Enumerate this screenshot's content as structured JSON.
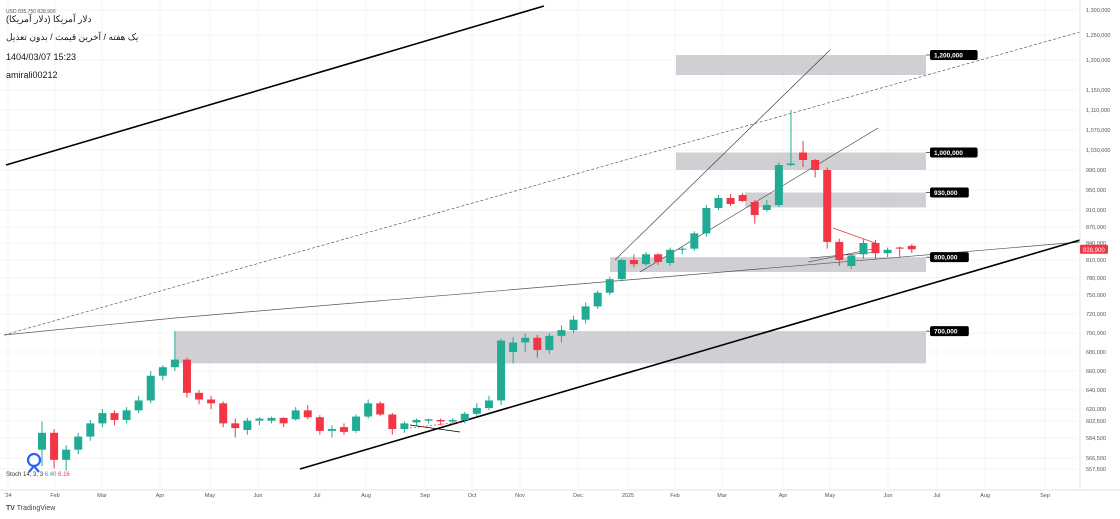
{
  "header": {
    "ohlc_line": "USD 835,750 828,900",
    "symbol_title": "دلار آمریکا (دلار آمریکا)",
    "interval_desc": "یک هفته / آخرین قیمت / بدون تعدیل",
    "timestamp": "1404/03/07 15:23",
    "author": "amirali00212"
  },
  "indicator_legend": {
    "label": "Stoch",
    "params": "14, 3, 3",
    "value1": "6.40",
    "value2": "6.16"
  },
  "watermark": "TradingView",
  "colors": {
    "up": "#22ab94",
    "down": "#f23645",
    "zone": "#c8c8cc",
    "grid": "#eeeeee",
    "price_tag": "#f23645"
  },
  "chart_data": {
    "type": "candlestick",
    "y_axis": {
      "ticks": [
        557500,
        566500,
        584500,
        602500,
        620000,
        640000,
        660000,
        680000,
        700000,
        720000,
        750000,
        780000,
        810000,
        840000,
        870000,
        910000,
        950000,
        990000,
        1030000,
        1070000,
        1110000,
        1150000,
        1200000,
        1250000,
        1300000
      ],
      "tick_labels": [
        "557,500",
        "566,500",
        "584,500",
        "602,500",
        "620,000",
        "640,000",
        "660,000",
        "680,000",
        "700,000",
        "720,000",
        "750,000",
        "780,000",
        "810,000",
        "840,000",
        "870,000",
        "910,000",
        "950,000",
        "990,000",
        "1,030,000",
        "1,070,000",
        "1,110,000",
        "1,150,000",
        "1,200,000",
        "1,250,000",
        "1,300,000"
      ]
    },
    "x_axis": {
      "labels": [
        "'24",
        "Feb",
        "Mar",
        "Apr",
        "May",
        "Jun",
        "Jul",
        "Aug",
        "Sep",
        "Oct",
        "Nov",
        "Dec",
        "2025",
        "Feb",
        "Mar",
        "Apr",
        "May",
        "Jun",
        "Jul",
        "Aug",
        "Sep"
      ]
    },
    "last_price": 828900,
    "last_price_label": "828,900",
    "candles": [
      {
        "o": 574000,
        "h": 602000,
        "l": 560000,
        "c": 590000
      },
      {
        "o": 590000,
        "h": 594000,
        "l": 558000,
        "c": 565000
      },
      {
        "o": 565000,
        "h": 578000,
        "l": 556000,
        "c": 574000
      },
      {
        "o": 574000,
        "h": 590000,
        "l": 570000,
        "c": 586000
      },
      {
        "o": 586000,
        "h": 604000,
        "l": 582000,
        "c": 600000
      },
      {
        "o": 600000,
        "h": 620000,
        "l": 596000,
        "c": 614000
      },
      {
        "o": 614000,
        "h": 618000,
        "l": 598000,
        "c": 604000
      },
      {
        "o": 604000,
        "h": 622000,
        "l": 600000,
        "c": 618000
      },
      {
        "o": 618000,
        "h": 634000,
        "l": 614000,
        "c": 629000
      },
      {
        "o": 629000,
        "h": 660000,
        "l": 626000,
        "c": 655000
      },
      {
        "o": 655000,
        "h": 666000,
        "l": 650000,
        "c": 664000
      },
      {
        "o": 664000,
        "h": 702000,
        "l": 660000,
        "c": 672000
      },
      {
        "o": 672000,
        "h": 674000,
        "l": 632000,
        "c": 637000
      },
      {
        "o": 637000,
        "h": 640000,
        "l": 625000,
        "c": 630000
      },
      {
        "o": 630000,
        "h": 634000,
        "l": 620000,
        "c": 626000
      },
      {
        "o": 626000,
        "h": 628000,
        "l": 596000,
        "c": 600000
      },
      {
        "o": 600000,
        "h": 606000,
        "l": 585000,
        "c": 595000
      },
      {
        "o": 593000,
        "h": 607000,
        "l": 588000,
        "c": 603000
      },
      {
        "o": 603000,
        "h": 608000,
        "l": 598000,
        "c": 606000
      },
      {
        "o": 603000,
        "h": 609000,
        "l": 600000,
        "c": 607000
      },
      {
        "o": 607000,
        "h": 608000,
        "l": 596000,
        "c": 600000
      },
      {
        "o": 605000,
        "h": 622000,
        "l": 603000,
        "c": 618000
      },
      {
        "o": 618000,
        "h": 624000,
        "l": 605000,
        "c": 608000
      },
      {
        "o": 608000,
        "h": 611000,
        "l": 588000,
        "c": 592000
      },
      {
        "o": 592000,
        "h": 598000,
        "l": 585000,
        "c": 594000
      },
      {
        "o": 596000,
        "h": 600000,
        "l": 588000,
        "c": 591000
      },
      {
        "o": 592000,
        "h": 612000,
        "l": 590000,
        "c": 609000
      },
      {
        "o": 609000,
        "h": 630000,
        "l": 606000,
        "c": 626000
      },
      {
        "o": 626000,
        "h": 628000,
        "l": 610000,
        "c": 612000
      },
      {
        "o": 612000,
        "h": 614000,
        "l": 588000,
        "c": 594000
      },
      {
        "o": 594000,
        "h": 602000,
        "l": 590000,
        "c": 600000
      },
      {
        "o": 601000,
        "h": 606000,
        "l": 598000,
        "c": 604000
      },
      {
        "o": 603000,
        "h": 606000,
        "l": 600000,
        "c": 605000
      },
      {
        "o": 604000,
        "h": 606000,
        "l": 598000,
        "c": 602000
      },
      {
        "o": 602000,
        "h": 607000,
        "l": 599000,
        "c": 604000
      },
      {
        "o": 604000,
        "h": 616000,
        "l": 600000,
        "c": 613000
      },
      {
        "o": 613000,
        "h": 626000,
        "l": 610000,
        "c": 621000
      },
      {
        "o": 621000,
        "h": 634000,
        "l": 618000,
        "c": 629000
      },
      {
        "o": 629000,
        "h": 694000,
        "l": 624000,
        "c": 692000
      },
      {
        "o": 680000,
        "h": 696000,
        "l": 668000,
        "c": 690000
      },
      {
        "o": 690000,
        "h": 700000,
        "l": 680000,
        "c": 695000
      },
      {
        "o": 695000,
        "h": 698000,
        "l": 674000,
        "c": 682000
      },
      {
        "o": 682000,
        "h": 700000,
        "l": 678000,
        "c": 697000
      },
      {
        "o": 697000,
        "h": 708000,
        "l": 690000,
        "c": 703000
      },
      {
        "o": 703000,
        "h": 718000,
        "l": 700000,
        "c": 714000
      },
      {
        "o": 714000,
        "h": 738000,
        "l": 710000,
        "c": 732000
      },
      {
        "o": 732000,
        "h": 758000,
        "l": 728000,
        "c": 754000
      },
      {
        "o": 754000,
        "h": 782000,
        "l": 750000,
        "c": 778000
      },
      {
        "o": 778000,
        "h": 812000,
        "l": 774000,
        "c": 810000
      },
      {
        "o": 810000,
        "h": 820000,
        "l": 798000,
        "c": 803000
      },
      {
        "o": 803000,
        "h": 824000,
        "l": 800000,
        "c": 820000
      },
      {
        "o": 820000,
        "h": 822000,
        "l": 802000,
        "c": 807000
      },
      {
        "o": 805000,
        "h": 832000,
        "l": 800000,
        "c": 828000
      },
      {
        "o": 828000,
        "h": 834000,
        "l": 820000,
        "c": 830000
      },
      {
        "o": 830000,
        "h": 862000,
        "l": 826000,
        "c": 858000
      },
      {
        "o": 858000,
        "h": 920000,
        "l": 852000,
        "c": 914000
      },
      {
        "o": 914000,
        "h": 940000,
        "l": 910000,
        "c": 934000
      },
      {
        "o": 934000,
        "h": 942000,
        "l": 918000,
        "c": 922000
      },
      {
        "o": 940000,
        "h": 944000,
        "l": 926000,
        "c": 928000
      },
      {
        "o": 926000,
        "h": 930000,
        "l": 878000,
        "c": 898000
      },
      {
        "o": 910000,
        "h": 930000,
        "l": 906000,
        "c": 920000
      },
      {
        "o": 920000,
        "h": 1005000,
        "l": 916000,
        "c": 1000000
      },
      {
        "o": 1000000,
        "h": 1110000,
        "l": 998000,
        "c": 1003000
      },
      {
        "o": 1025000,
        "h": 1048000,
        "l": 996000,
        "c": 1010000
      },
      {
        "o": 1010000,
        "h": 1012000,
        "l": 975000,
        "c": 990000
      },
      {
        "o": 990000,
        "h": 995000,
        "l": 830000,
        "c": 842000
      },
      {
        "o": 842000,
        "h": 848000,
        "l": 800000,
        "c": 810000
      },
      {
        "o": 800000,
        "h": 820000,
        "l": 795000,
        "c": 818000
      },
      {
        "o": 820000,
        "h": 848000,
        "l": 812000,
        "c": 840000
      },
      {
        "o": 840000,
        "h": 846000,
        "l": 812000,
        "c": 822000
      },
      {
        "o": 822000,
        "h": 832000,
        "l": 815000,
        "c": 828000
      },
      {
        "o": 832000,
        "h": 834000,
        "l": 815000,
        "c": 830000
      },
      {
        "o": 835000,
        "h": 838000,
        "l": 822000,
        "c": 828900
      }
    ],
    "zones": [
      {
        "label": "1,200,000",
        "top": 1210000,
        "bottom": 1175000
      },
      {
        "label": "1,000,000",
        "top": 1025000,
        "bottom": 990000
      },
      {
        "label": "930,000",
        "top": 945000,
        "bottom": 915000
      },
      {
        "label": "800,000",
        "top": 815000,
        "bottom": 790000
      },
      {
        "label": "700,000",
        "top": 702000,
        "bottom": 668000
      }
    ]
  }
}
